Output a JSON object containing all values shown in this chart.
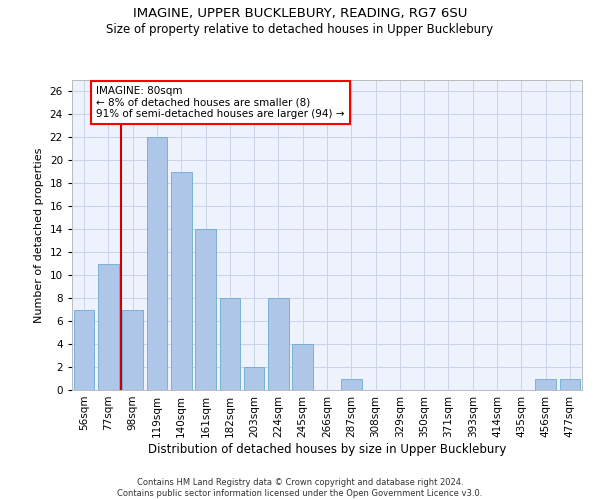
{
  "title1": "IMAGINE, UPPER BUCKLEBURY, READING, RG7 6SU",
  "title2": "Size of property relative to detached houses in Upper Bucklebury",
  "xlabel": "Distribution of detached houses by size in Upper Bucklebury",
  "ylabel": "Number of detached properties",
  "footnote": "Contains HM Land Registry data © Crown copyright and database right 2024.\nContains public sector information licensed under the Open Government Licence v3.0.",
  "categories": [
    "56sqm",
    "77sqm",
    "98sqm",
    "119sqm",
    "140sqm",
    "161sqm",
    "182sqm",
    "203sqm",
    "224sqm",
    "245sqm",
    "266sqm",
    "287sqm",
    "308sqm",
    "329sqm",
    "350sqm",
    "371sqm",
    "393sqm",
    "414sqm",
    "435sqm",
    "456sqm",
    "477sqm"
  ],
  "values": [
    7,
    11,
    7,
    22,
    19,
    14,
    8,
    2,
    8,
    4,
    0,
    1,
    0,
    0,
    0,
    0,
    0,
    0,
    0,
    1,
    1
  ],
  "bar_color": "#aec6e8",
  "bar_edge_color": "#6aaad4",
  "vline_x": 1.5,
  "vline_color": "#cc0000",
  "annotation_text": "IMAGINE: 80sqm\n← 8% of detached houses are smaller (8)\n91% of semi-detached houses are larger (94) →",
  "ylim": [
    0,
    27
  ],
  "yticks": [
    0,
    2,
    4,
    6,
    8,
    10,
    12,
    14,
    16,
    18,
    20,
    22,
    24,
    26
  ],
  "grid_color": "#c8d4e8",
  "background_color": "#edf2fc",
  "title1_fontsize": 9.5,
  "title2_fontsize": 8.5,
  "xlabel_fontsize": 8.5,
  "ylabel_fontsize": 8,
  "tick_fontsize": 7.5,
  "annotation_fontsize": 7.5
}
